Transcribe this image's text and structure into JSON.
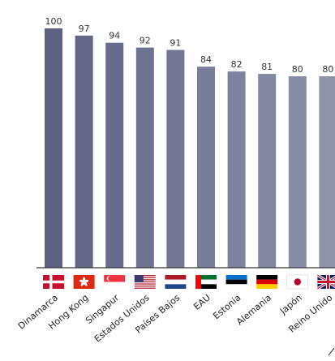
{
  "chart_data": {
    "type": "bar",
    "title": "",
    "xlabel": "",
    "ylabel": "",
    "ylim": [
      0,
      100
    ],
    "grid": false,
    "legend": "none",
    "categories": [
      "Dinamarca",
      "Hong Kong",
      "Singapur",
      "Estados Unidos",
      "Países Bajos",
      "EAU",
      "Estonia",
      "Alemania",
      "Japón",
      "Reino Unido"
    ],
    "values": [
      100,
      97,
      94,
      92,
      91,
      84,
      82,
      81,
      80,
      80
    ],
    "flags": [
      "flag-denmark-icon",
      "flag-hong-kong-icon",
      "flag-singapore-icon",
      "flag-united-states-icon",
      "flag-netherlands-icon",
      "flag-uae-icon",
      "flag-estonia-icon",
      "flag-germany-icon",
      "flag-japan-icon",
      "flag-united-kingdom-icon"
    ],
    "bar_color_start": "#5c6184",
    "bar_color_end": "#8e93aa"
  }
}
